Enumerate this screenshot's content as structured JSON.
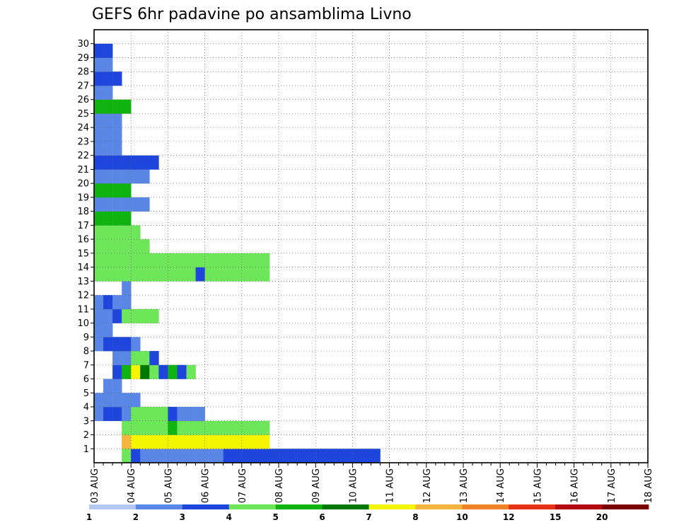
{
  "chart_data": {
    "type": "heatmap",
    "title": "GEFS 6hr padavine po ansamblima Livno",
    "xlabel": "",
    "ylabel": "",
    "x_ticks": [
      "03 AUG",
      "04 AUG",
      "05 AUG",
      "06 AUG",
      "07 AUG",
      "08 AUG",
      "09 AUG",
      "10 AUG",
      "11 AUG",
      "12 AUG",
      "13 AUG",
      "14 AUG",
      "15 AUG",
      "16 AUG",
      "17 AUG",
      "18 AUG"
    ],
    "y_ticks": [
      "1",
      "2",
      "3",
      "4",
      "5",
      "6",
      "7",
      "8",
      "9",
      "10",
      "11",
      "12",
      "13",
      "14",
      "15",
      "16",
      "17",
      "18",
      "19",
      "20",
      "21",
      "22",
      "23",
      "24",
      "25",
      "26",
      "27",
      "28",
      "29",
      "30"
    ],
    "time_steps_per_day": 4,
    "ensemble_members": 31,
    "grid": true,
    "legend": {
      "placement": "bottom",
      "labels": [
        "1",
        "2",
        "3",
        "4",
        "5",
        "6",
        "7",
        "8",
        "10",
        "12",
        "15",
        "20"
      ],
      "colors": [
        "#b4c8f5",
        "#5a87e6",
        "#1e46dc",
        "#6ee65a",
        "#10b410",
        "#007800",
        "#f5f500",
        "#f5b43c",
        "#f08228",
        "#e63214",
        "#b40a0a",
        "#780000"
      ]
    },
    "cells": [
      [
        3,
        0,
        3
      ],
      [
        4,
        0,
        2
      ],
      [
        5,
        0,
        1
      ],
      [
        6,
        0,
        1
      ],
      [
        7,
        0,
        1
      ],
      [
        8,
        0,
        1
      ],
      [
        9,
        0,
        1
      ],
      [
        10,
        0,
        1
      ],
      [
        11,
        0,
        1
      ],
      [
        12,
        0,
        1
      ],
      [
        13,
        0,
        1
      ],
      [
        14,
        0,
        2
      ],
      [
        15,
        0,
        2
      ],
      [
        16,
        0,
        2
      ],
      [
        17,
        0,
        2
      ],
      [
        18,
        0,
        2
      ],
      [
        19,
        0,
        2
      ],
      [
        20,
        0,
        2
      ],
      [
        21,
        0,
        2
      ],
      [
        22,
        0,
        2
      ],
      [
        23,
        0,
        2
      ],
      [
        24,
        0,
        2
      ],
      [
        25,
        0,
        2
      ],
      [
        26,
        0,
        2
      ],
      [
        27,
        0,
        2
      ],
      [
        28,
        0,
        2
      ],
      [
        29,
        0,
        2
      ],
      [
        30,
        0,
        2
      ],
      [
        3,
        1,
        7
      ],
      [
        4,
        1,
        6
      ],
      [
        5,
        1,
        6
      ],
      [
        6,
        1,
        6
      ],
      [
        7,
        1,
        6
      ],
      [
        8,
        1,
        6
      ],
      [
        9,
        1,
        6
      ],
      [
        10,
        1,
        6
      ],
      [
        11,
        1,
        6
      ],
      [
        12,
        1,
        6
      ],
      [
        13,
        1,
        6
      ],
      [
        14,
        1,
        6
      ],
      [
        15,
        1,
        6
      ],
      [
        16,
        1,
        6
      ],
      [
        17,
        1,
        6
      ],
      [
        18,
        1,
        6
      ],
      [
        3,
        2,
        3
      ],
      [
        4,
        2,
        3
      ],
      [
        5,
        2,
        3
      ],
      [
        6,
        2,
        3
      ],
      [
        7,
        2,
        3
      ],
      [
        8,
        2,
        4
      ],
      [
        9,
        2,
        3
      ],
      [
        10,
        2,
        3
      ],
      [
        11,
        2,
        3
      ],
      [
        12,
        2,
        3
      ],
      [
        13,
        2,
        3
      ],
      [
        14,
        2,
        3
      ],
      [
        15,
        2,
        3
      ],
      [
        16,
        2,
        3
      ],
      [
        17,
        2,
        3
      ],
      [
        18,
        2,
        3
      ],
      [
        0,
        3,
        1
      ],
      [
        1,
        3,
        2
      ],
      [
        2,
        3,
        2
      ],
      [
        3,
        3,
        1
      ],
      [
        4,
        3,
        3
      ],
      [
        5,
        3,
        3
      ],
      [
        6,
        3,
        3
      ],
      [
        7,
        3,
        3
      ],
      [
        8,
        3,
        2
      ],
      [
        9,
        3,
        1
      ],
      [
        10,
        3,
        1
      ],
      [
        11,
        3,
        1
      ],
      [
        0,
        4,
        1
      ],
      [
        1,
        4,
        1
      ],
      [
        2,
        4,
        1
      ],
      [
        3,
        4,
        1
      ],
      [
        4,
        4,
        1
      ],
      [
        1,
        5,
        1
      ],
      [
        2,
        5,
        1
      ],
      [
        2,
        6,
        2
      ],
      [
        3,
        6,
        4
      ],
      [
        4,
        6,
        6
      ],
      [
        5,
        6,
        5
      ],
      [
        6,
        6,
        3
      ],
      [
        7,
        6,
        2
      ],
      [
        8,
        6,
        4
      ],
      [
        9,
        6,
        2
      ],
      [
        10,
        6,
        3
      ],
      [
        2,
        7,
        1
      ],
      [
        3,
        7,
        1
      ],
      [
        4,
        7,
        3
      ],
      [
        5,
        7,
        3
      ],
      [
        6,
        7,
        2
      ],
      [
        0,
        8,
        1
      ],
      [
        1,
        8,
        2
      ],
      [
        2,
        8,
        2
      ],
      [
        3,
        8,
        2
      ],
      [
        4,
        8,
        1
      ],
      [
        0,
        9,
        1
      ],
      [
        1,
        9,
        1
      ],
      [
        0,
        10,
        1
      ],
      [
        1,
        10,
        1
      ],
      [
        2,
        10,
        2
      ],
      [
        3,
        10,
        3
      ],
      [
        4,
        10,
        3
      ],
      [
        5,
        10,
        3
      ],
      [
        6,
        10,
        3
      ],
      [
        0,
        11,
        1
      ],
      [
        1,
        11,
        2
      ],
      [
        2,
        11,
        1
      ],
      [
        3,
        11,
        1
      ],
      [
        3,
        12,
        1
      ],
      [
        0,
        13,
        3
      ],
      [
        1,
        13,
        3
      ],
      [
        2,
        13,
        3
      ],
      [
        3,
        13,
        3
      ],
      [
        4,
        13,
        3
      ],
      [
        5,
        13,
        3
      ],
      [
        6,
        13,
        3
      ],
      [
        7,
        13,
        3
      ],
      [
        8,
        13,
        3
      ],
      [
        9,
        13,
        3
      ],
      [
        10,
        13,
        3
      ],
      [
        11,
        13,
        2
      ],
      [
        12,
        13,
        3
      ],
      [
        13,
        13,
        3
      ],
      [
        14,
        13,
        3
      ],
      [
        15,
        13,
        3
      ],
      [
        16,
        13,
        3
      ],
      [
        17,
        13,
        3
      ],
      [
        18,
        13,
        3
      ],
      [
        0,
        14,
        3
      ],
      [
        1,
        14,
        3
      ],
      [
        2,
        14,
        3
      ],
      [
        3,
        14,
        3
      ],
      [
        4,
        14,
        3
      ],
      [
        5,
        14,
        3
      ],
      [
        6,
        14,
        3
      ],
      [
        7,
        14,
        3
      ],
      [
        8,
        14,
        3
      ],
      [
        9,
        14,
        3
      ],
      [
        10,
        14,
        3
      ],
      [
        11,
        14,
        3
      ],
      [
        12,
        14,
        3
      ],
      [
        13,
        14,
        3
      ],
      [
        14,
        14,
        3
      ],
      [
        15,
        14,
        3
      ],
      [
        16,
        14,
        3
      ],
      [
        17,
        14,
        3
      ],
      [
        18,
        14,
        3
      ],
      [
        0,
        15,
        3
      ],
      [
        1,
        15,
        3
      ],
      [
        2,
        15,
        3
      ],
      [
        3,
        15,
        3
      ],
      [
        4,
        15,
        3
      ],
      [
        5,
        15,
        3
      ],
      [
        0,
        16,
        3
      ],
      [
        1,
        16,
        3
      ],
      [
        2,
        16,
        3
      ],
      [
        3,
        16,
        3
      ],
      [
        4,
        16,
        3
      ],
      [
        0,
        17,
        4
      ],
      [
        1,
        17,
        4
      ],
      [
        2,
        17,
        4
      ],
      [
        3,
        17,
        4
      ],
      [
        0,
        18,
        1
      ],
      [
        1,
        18,
        1
      ],
      [
        2,
        18,
        1
      ],
      [
        3,
        18,
        1
      ],
      [
        4,
        18,
        1
      ],
      [
        5,
        18,
        1
      ],
      [
        0,
        19,
        4
      ],
      [
        1,
        19,
        4
      ],
      [
        2,
        19,
        4
      ],
      [
        3,
        19,
        4
      ],
      [
        0,
        20,
        1
      ],
      [
        1,
        20,
        1
      ],
      [
        2,
        20,
        1
      ],
      [
        3,
        20,
        1
      ],
      [
        4,
        20,
        1
      ],
      [
        5,
        20,
        1
      ],
      [
        0,
        21,
        2
      ],
      [
        1,
        21,
        2
      ],
      [
        2,
        21,
        2
      ],
      [
        3,
        21,
        2
      ],
      [
        4,
        21,
        2
      ],
      [
        5,
        21,
        2
      ],
      [
        6,
        21,
        2
      ],
      [
        0,
        22,
        1
      ],
      [
        1,
        22,
        1
      ],
      [
        2,
        22,
        1
      ],
      [
        0,
        23,
        1
      ],
      [
        1,
        23,
        1
      ],
      [
        2,
        23,
        1
      ],
      [
        0,
        24,
        1
      ],
      [
        1,
        24,
        1
      ],
      [
        2,
        24,
        1
      ],
      [
        0,
        25,
        4
      ],
      [
        1,
        25,
        4
      ],
      [
        2,
        25,
        4
      ],
      [
        3,
        25,
        4
      ],
      [
        0,
        26,
        1
      ],
      [
        1,
        26,
        1
      ],
      [
        0,
        27,
        2
      ],
      [
        1,
        27,
        2
      ],
      [
        2,
        27,
        2
      ],
      [
        0,
        28,
        1
      ],
      [
        1,
        28,
        1
      ],
      [
        0,
        29,
        2
      ],
      [
        1,
        29,
        2
      ]
    ]
  }
}
